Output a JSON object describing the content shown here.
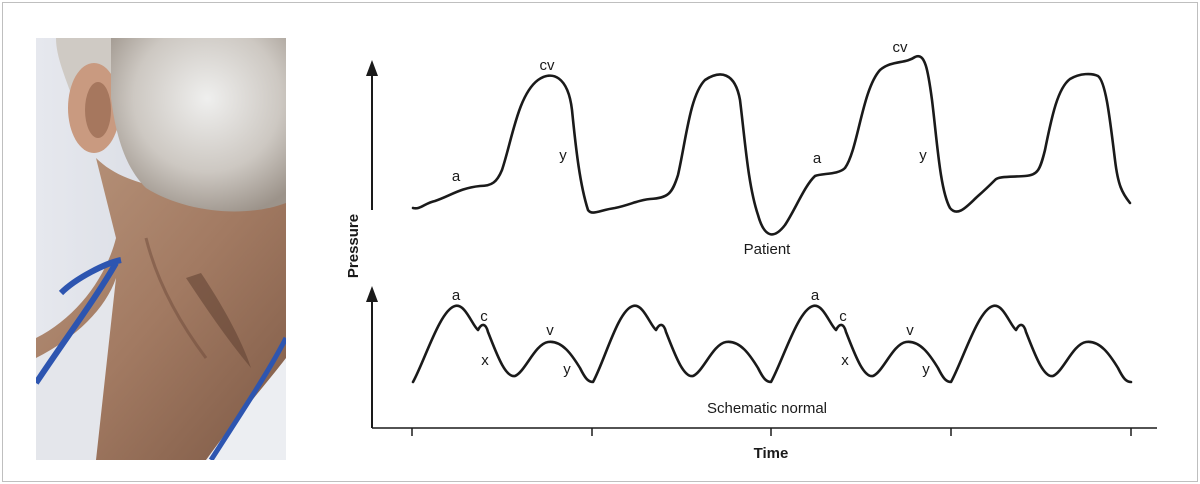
{
  "photo": {
    "subject": "patient-neck-photo"
  },
  "diagram": {
    "y_axis_title": "Pressure",
    "x_axis_title": "Time",
    "patient_trace": {
      "label": "Patient",
      "wave_labels": [
        "a",
        "cv",
        "y",
        "a",
        "cv",
        "y"
      ]
    },
    "normal_trace": {
      "label": "Schematic normal",
      "wave_labels": [
        "a",
        "c",
        "x",
        "v",
        "y",
        "a",
        "c",
        "x",
        "v",
        "y"
      ]
    },
    "time_ticks": 5
  },
  "colors": {
    "line": "#1a1a1a",
    "frame": "#bfbfbf",
    "background": "#ffffff"
  }
}
